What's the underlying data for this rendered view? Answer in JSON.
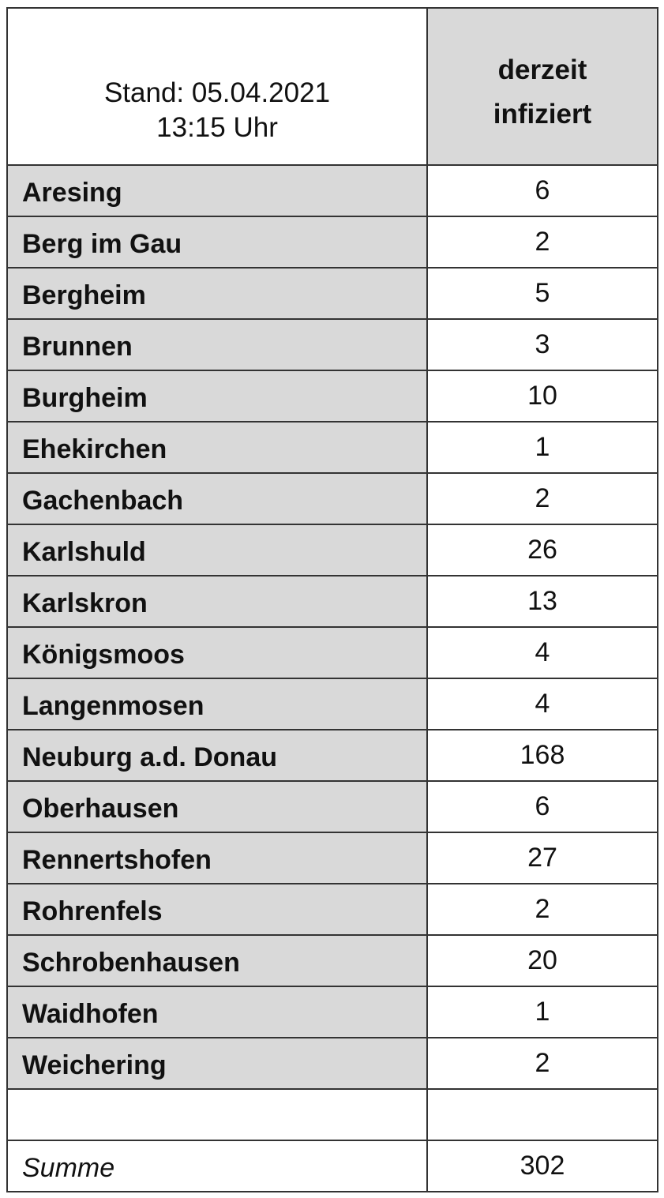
{
  "header": {
    "stand_line1": "Stand: 05.04.2021",
    "stand_line2": "13:15 Uhr",
    "column_line1": "derzeit",
    "column_line2": "infiziert"
  },
  "rows": [
    {
      "name": "Aresing",
      "value": "6"
    },
    {
      "name": "Berg im Gau",
      "value": "2"
    },
    {
      "name": "Bergheim",
      "value": "5"
    },
    {
      "name": "Brunnen",
      "value": "3"
    },
    {
      "name": "Burgheim",
      "value": "10"
    },
    {
      "name": "Ehekirchen",
      "value": "1"
    },
    {
      "name": "Gachenbach",
      "value": "2"
    },
    {
      "name": "Karlshuld",
      "value": "26"
    },
    {
      "name": "Karlskron",
      "value": "13"
    },
    {
      "name": "Königsmoos",
      "value": "4"
    },
    {
      "name": "Langenmosen",
      "value": "4"
    },
    {
      "name": "Neuburg a.d. Donau",
      "value": "168"
    },
    {
      "name": "Oberhausen",
      "value": "6"
    },
    {
      "name": "Rennertshofen",
      "value": "27"
    },
    {
      "name": "Rohrenfels",
      "value": "2"
    },
    {
      "name": "Schrobenhausen",
      "value": "20"
    },
    {
      "name": "Waidhofen",
      "value": "1"
    },
    {
      "name": "Weichering",
      "value": "2"
    }
  ],
  "total": {
    "label": "Summe",
    "value": "302"
  },
  "colors": {
    "shade": "#d9d9d9",
    "border": "#333333"
  }
}
